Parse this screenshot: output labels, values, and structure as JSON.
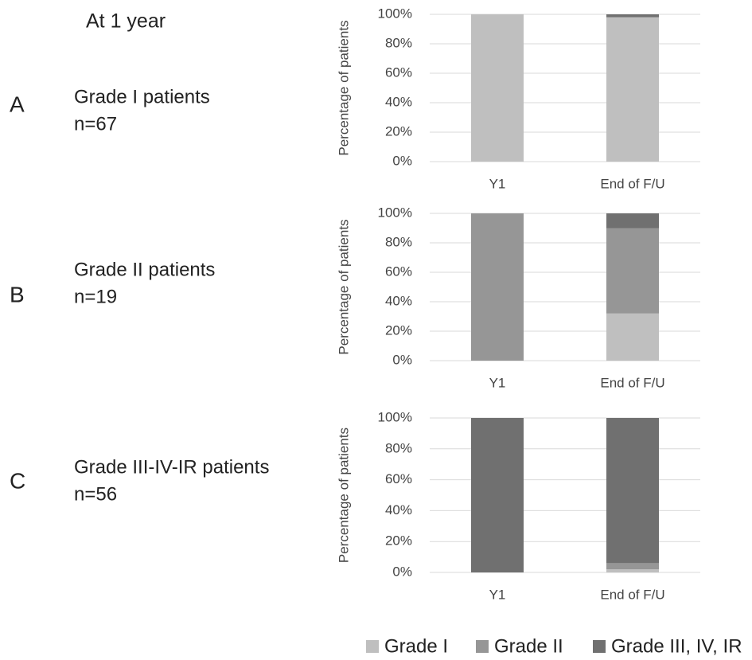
{
  "heading": "At 1 year",
  "legend": {
    "series": [
      {
        "name": "Grade I",
        "color": "#bfbfbf"
      },
      {
        "name": "Grade II",
        "color": "#969696"
      },
      {
        "name": "Grade III, IV, IR",
        "color": "#707070"
      }
    ]
  },
  "chart_data": [
    {
      "type": "bar",
      "stacked": true,
      "panel": "A",
      "label": "Grade I patients",
      "n": "n=67",
      "ylabel": "Percentage of patients",
      "categories": [
        "Y1",
        "End of F/U"
      ],
      "series": [
        {
          "values": [
            100,
            98
          ]
        },
        {
          "values": [
            0,
            0
          ]
        },
        {
          "values": [
            0,
            2
          ]
        }
      ],
      "ylim": [
        0,
        100
      ],
      "yticks": [
        {
          "value": 0,
          "label": "0%"
        },
        {
          "value": 20,
          "label": "20%"
        },
        {
          "value": 40,
          "label": "40%"
        },
        {
          "value": 60,
          "label": "60%"
        },
        {
          "value": 80,
          "label": "80%"
        },
        {
          "value": 100,
          "label": "100%"
        }
      ],
      "grid": true
    },
    {
      "type": "bar",
      "stacked": true,
      "panel": "B",
      "label": "Grade II patients",
      "n": "n=19",
      "ylabel": "Percentage of patients",
      "categories": [
        "Y1",
        "End of F/U"
      ],
      "series": [
        {
          "values": [
            0,
            32
          ]
        },
        {
          "values": [
            100,
            58
          ]
        },
        {
          "values": [
            0,
            10
          ]
        }
      ],
      "ylim": [
        0,
        100
      ],
      "yticks": [
        {
          "value": 0,
          "label": "0%"
        },
        {
          "value": 20,
          "label": "20%"
        },
        {
          "value": 40,
          "label": "40%"
        },
        {
          "value": 60,
          "label": "60%"
        },
        {
          "value": 80,
          "label": "80%"
        },
        {
          "value": 100,
          "label": "100%"
        }
      ],
      "grid": true
    },
    {
      "type": "bar",
      "stacked": true,
      "panel": "C",
      "label": "Grade III-IV-IR patients",
      "n": "n=56",
      "ylabel": "Percentage of patients",
      "categories": [
        "Y1",
        "End of F/U"
      ],
      "series": [
        {
          "values": [
            0,
            2
          ]
        },
        {
          "values": [
            0,
            4
          ]
        },
        {
          "values": [
            100,
            94
          ]
        }
      ],
      "ylim": [
        0,
        100
      ],
      "yticks": [
        {
          "value": 0,
          "label": "0%"
        },
        {
          "value": 20,
          "label": "20%"
        },
        {
          "value": 40,
          "label": "40%"
        },
        {
          "value": 60,
          "label": "60%"
        },
        {
          "value": 80,
          "label": "80%"
        },
        {
          "value": 100,
          "label": "100%"
        }
      ],
      "grid": true
    }
  ]
}
